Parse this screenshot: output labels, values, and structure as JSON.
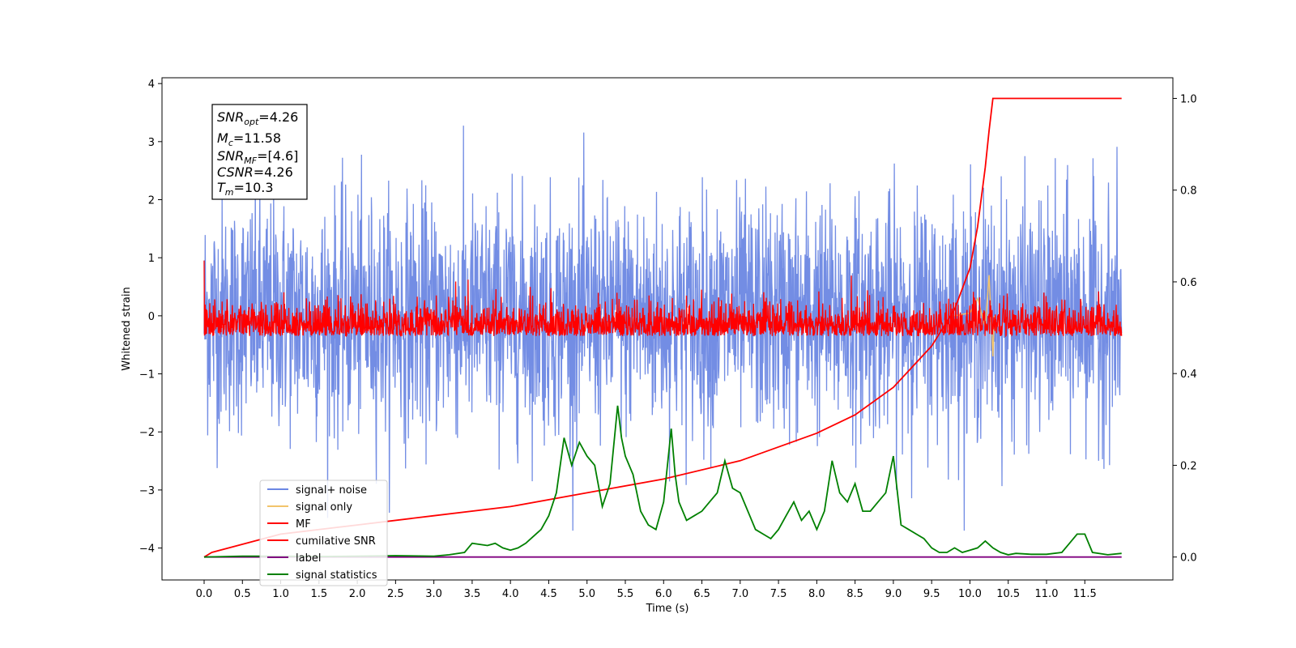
{
  "chart_data": {
    "type": "line",
    "xlabel": "Time (s)",
    "ylabel": "Whitened strain",
    "xlim": [
      -0.55,
      12.65
    ],
    "ylim": [
      -4.55,
      4.1
    ],
    "y2lim": [
      -0.05,
      1.045
    ],
    "x_ticks": [
      "0.0",
      "0.5",
      "1.0",
      "1.5",
      "2.0",
      "2.5",
      "3.0",
      "3.5",
      "4.0",
      "4.5",
      "5.0",
      "5.5",
      "6.0",
      "6.5",
      "7.0",
      "7.5",
      "8.0",
      "8.5",
      "9.0",
      "9.5",
      "10.0",
      "10.5",
      "11.0",
      "11.5"
    ],
    "y_ticks": [
      "4",
      "3",
      "2",
      "1",
      "0",
      "−1",
      "−2",
      "−3",
      "−4"
    ],
    "y2_ticks": [
      "1.0",
      "0.8",
      "0.6",
      "0.4",
      "0.2",
      "0.0"
    ],
    "info_box": {
      "snr_opt": "=4.26",
      "mc": "=11.58",
      "snr_mf": "=[4.6]",
      "csnr": "=4.26",
      "tm": "=10.3"
    },
    "legend": {
      "placement": "lower-left",
      "entries": [
        "signal+ noise",
        "signal only",
        "MF",
        "cumilative SNR",
        "label",
        "signal statistics"
      ]
    },
    "series": [
      {
        "name": "signal+ noise",
        "color": "#6b87e3",
        "axis": "left",
        "x_range": [
          0,
          11.98
        ],
        "amplitude": 3.7,
        "noise_rms": 1.0
      },
      {
        "name": "signal only",
        "color": "#f2c46b",
        "axis": "left",
        "x": [
          9.8,
          10.0,
          10.1,
          10.2,
          10.25,
          10.3,
          10.32
        ],
        "y": [
          0.0,
          0.05,
          0.3,
          -0.2,
          0.7,
          -0.7,
          0.0
        ]
      },
      {
        "name": "MF",
        "color": "#ff0000",
        "axis": "left",
        "x_range": [
          0,
          11.98
        ],
        "baseline": -0.25,
        "peak_max": 0.95
      },
      {
        "name": "cumilative SNR",
        "color": "#ff0000",
        "axis": "right",
        "x": [
          0.0,
          0.1,
          1.0,
          2.0,
          3.0,
          4.0,
          5.0,
          6.0,
          7.0,
          8.0,
          8.5,
          9.0,
          9.5,
          9.8,
          10.0,
          10.1,
          10.2,
          10.25,
          10.3,
          11.98
        ],
        "y": [
          0.0,
          0.01,
          0.05,
          0.07,
          0.09,
          0.11,
          0.14,
          0.17,
          0.21,
          0.27,
          0.31,
          0.37,
          0.46,
          0.54,
          0.63,
          0.72,
          0.85,
          0.93,
          1.0,
          1.0
        ]
      },
      {
        "name": "label",
        "color": "#800080",
        "axis": "right",
        "x": [
          0.0,
          11.98
        ],
        "y": [
          0.0,
          0.0
        ]
      },
      {
        "name": "signal statistics",
        "color": "#008000",
        "axis": "right",
        "x": [
          0.0,
          0.5,
          1.0,
          1.5,
          2.0,
          2.5,
          3.0,
          3.2,
          3.4,
          3.5,
          3.7,
          3.8,
          3.9,
          4.0,
          4.1,
          4.2,
          4.3,
          4.4,
          4.5,
          4.6,
          4.7,
          4.8,
          4.9,
          5.0,
          5.1,
          5.2,
          5.3,
          5.4,
          5.45,
          5.5,
          5.6,
          5.7,
          5.8,
          5.9,
          6.0,
          6.1,
          6.15,
          6.2,
          6.3,
          6.4,
          6.5,
          6.6,
          6.7,
          6.8,
          6.9,
          7.0,
          7.1,
          7.2,
          7.3,
          7.4,
          7.5,
          7.6,
          7.7,
          7.8,
          7.9,
          8.0,
          8.1,
          8.2,
          8.3,
          8.4,
          8.5,
          8.6,
          8.7,
          8.8,
          8.9,
          9.0,
          9.1,
          9.2,
          9.3,
          9.4,
          9.5,
          9.6,
          9.7,
          9.8,
          9.9,
          10.0,
          10.1,
          10.2,
          10.3,
          10.4,
          10.5,
          10.6,
          10.8,
          11.0,
          11.2,
          11.3,
          11.4,
          11.5,
          11.6,
          11.8,
          11.98
        ],
        "y": [
          0.0,
          0.002,
          0.002,
          0.001,
          0.002,
          0.003,
          0.002,
          0.005,
          0.01,
          0.03,
          0.025,
          0.03,
          0.02,
          0.015,
          0.02,
          0.03,
          0.045,
          0.06,
          0.09,
          0.14,
          0.26,
          0.2,
          0.25,
          0.22,
          0.2,
          0.11,
          0.16,
          0.33,
          0.26,
          0.22,
          0.18,
          0.1,
          0.07,
          0.06,
          0.12,
          0.28,
          0.18,
          0.12,
          0.08,
          0.09,
          0.1,
          0.12,
          0.14,
          0.21,
          0.15,
          0.14,
          0.1,
          0.06,
          0.05,
          0.04,
          0.06,
          0.09,
          0.12,
          0.08,
          0.1,
          0.06,
          0.1,
          0.21,
          0.14,
          0.12,
          0.16,
          0.1,
          0.1,
          0.12,
          0.14,
          0.22,
          0.07,
          0.06,
          0.05,
          0.04,
          0.02,
          0.01,
          0.01,
          0.02,
          0.01,
          0.015,
          0.02,
          0.035,
          0.02,
          0.01,
          0.005,
          0.008,
          0.006,
          0.006,
          0.01,
          0.03,
          0.05,
          0.05,
          0.01,
          0.005,
          0.008
        ]
      }
    ]
  }
}
